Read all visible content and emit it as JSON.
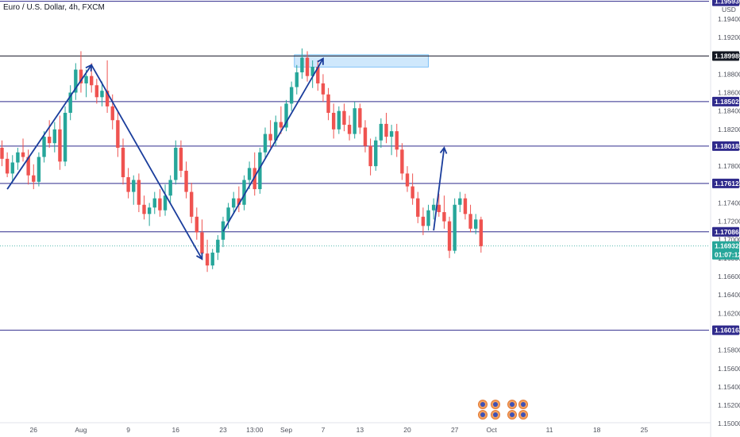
{
  "header": {
    "title": "Euro / U.S. Dollar, 4h, FXCM"
  },
  "colors": {
    "up": "#26a69a",
    "down": "#ef5350",
    "level_line": "#2f2a8c",
    "trend_arrow": "#1a3d9c",
    "current_price": "#26a69a",
    "zone_fill": "#bbdefb",
    "zone_stroke": "#64b5f6"
  },
  "chart_data": {
    "type": "candlestick",
    "symbol": "Euro / U.S. Dollar",
    "timeframe": "4h",
    "source": "FXCM",
    "y_axis": {
      "currency_label": "USD",
      "top_label": "1.19600",
      "ticks": [
        "1.19400",
        "1.19200",
        "1.19000",
        "1.18800",
        "1.18600",
        "1.18400",
        "1.18200",
        "1.18000",
        "1.17800",
        "1.17600",
        "1.17400",
        "1.17200",
        "1.17000",
        "1.16800",
        "1.16600",
        "1.16400",
        "1.16200",
        "1.16000",
        "1.15800",
        "1.15600",
        "1.15400",
        "1.15200",
        "1.15000"
      ],
      "ylim": [
        1.1495,
        1.1965
      ]
    },
    "x_axis": {
      "ticks": [
        {
          "label": "26",
          "idx": 6
        },
        {
          "label": "Aug",
          "idx": 15
        },
        {
          "label": "9",
          "idx": 24
        },
        {
          "label": "16",
          "idx": 33
        },
        {
          "label": "23",
          "idx": 42
        },
        {
          "label": "13:00",
          "idx": 48
        },
        {
          "label": "Sep",
          "idx": 54
        },
        {
          "label": "7",
          "idx": 61
        },
        {
          "label": "13",
          "idx": 68
        },
        {
          "label": "20",
          "idx": 77
        },
        {
          "label": "27",
          "idx": 86
        },
        {
          "label": "Oct",
          "idx": 93
        },
        {
          "label": "11",
          "idx": 104
        },
        {
          "label": "18",
          "idx": 113
        },
        {
          "label": "25",
          "idx": 122
        }
      ]
    },
    "horizontal_levels": [
      {
        "value": 1.19593,
        "label": "1.19593"
      },
      {
        "value": 1.18998,
        "label": "1.18998",
        "emphasis": true
      },
      {
        "value": 1.18502,
        "label": "1.18502"
      },
      {
        "value": 1.18018,
        "label": "1.18018"
      },
      {
        "value": 1.17612,
        "label": "1.17612"
      },
      {
        "value": 1.17086,
        "label": "1.17086"
      },
      {
        "value": 1.16016,
        "label": "1.16016"
      }
    ],
    "current_price": {
      "value": 1.16932,
      "label": "1.16932",
      "countdown": "01:07:12"
    },
    "zone": {
      "idx_start": 56,
      "idx_end": 81,
      "y_top": 1.19012,
      "y_bottom": 1.18878
    },
    "trend_arrows": [
      {
        "from": [
          1,
          1.1755
        ],
        "to": [
          17,
          1.189
        ]
      },
      {
        "from": [
          17,
          1.189
        ],
        "to": [
          38,
          1.1679
        ]
      },
      {
        "from": [
          42,
          1.1709
        ],
        "to": [
          61,
          1.1897
        ]
      },
      {
        "from": [
          82,
          1.171
        ],
        "to": [
          84,
          1.18
        ]
      }
    ],
    "candles": [
      [
        1.18,
        1.1808,
        1.178,
        1.1788
      ],
      [
        1.1788,
        1.1795,
        1.1768,
        1.1772
      ],
      [
        1.1772,
        1.1792,
        1.1762,
        1.1784
      ],
      [
        1.1784,
        1.18,
        1.1776,
        1.1795
      ],
      [
        1.1795,
        1.181,
        1.1785,
        1.179
      ],
      [
        1.179,
        1.1798,
        1.176,
        1.177
      ],
      [
        1.177,
        1.1782,
        1.1755,
        1.1763
      ],
      [
        1.1763,
        1.1795,
        1.1758,
        1.179
      ],
      [
        1.179,
        1.1818,
        1.1784,
        1.1812
      ],
      [
        1.1812,
        1.183,
        1.18,
        1.1805
      ],
      [
        1.1805,
        1.1828,
        1.1795,
        1.182
      ],
      [
        1.182,
        1.1835,
        1.1776,
        1.1785
      ],
      [
        1.1785,
        1.1845,
        1.178,
        1.1838
      ],
      [
        1.1838,
        1.1868,
        1.183,
        1.186
      ],
      [
        1.186,
        1.1892,
        1.1852,
        1.1885
      ],
      [
        1.1885,
        1.1905,
        1.186,
        1.187
      ],
      [
        1.187,
        1.1885,
        1.1855,
        1.1878
      ],
      [
        1.1878,
        1.1892,
        1.186,
        1.1868
      ],
      [
        1.1868,
        1.1875,
        1.1848,
        1.1855
      ],
      [
        1.1855,
        1.1872,
        1.1845,
        1.1862
      ],
      [
        1.1862,
        1.1895,
        1.1838,
        1.1845
      ],
      [
        1.1845,
        1.1858,
        1.182,
        1.183
      ],
      [
        1.183,
        1.184,
        1.179,
        1.18
      ],
      [
        1.18,
        1.181,
        1.176,
        1.1768
      ],
      [
        1.1768,
        1.1778,
        1.1745,
        1.1752
      ],
      [
        1.1752,
        1.177,
        1.1738,
        1.1765
      ],
      [
        1.1765,
        1.1772,
        1.173,
        1.1738
      ],
      [
        1.1738,
        1.1748,
        1.1722,
        1.1728
      ],
      [
        1.1728,
        1.174,
        1.1715,
        1.1735
      ],
      [
        1.1735,
        1.1752,
        1.1728,
        1.1745
      ],
      [
        1.1745,
        1.1755,
        1.1725,
        1.1732
      ],
      [
        1.1732,
        1.176,
        1.1726,
        1.1748
      ],
      [
        1.1748,
        1.177,
        1.174,
        1.1765
      ],
      [
        1.1765,
        1.1808,
        1.176,
        1.18
      ],
      [
        1.18,
        1.1808,
        1.1768,
        1.1775
      ],
      [
        1.1775,
        1.1785,
        1.1745,
        1.1752
      ],
      [
        1.1752,
        1.1762,
        1.1718,
        1.1725
      ],
      [
        1.1725,
        1.1735,
        1.17,
        1.1708
      ],
      [
        1.1708,
        1.1722,
        1.1678,
        1.1685
      ],
      [
        1.1685,
        1.17,
        1.1665,
        1.1672
      ],
      [
        1.1672,
        1.169,
        1.1668,
        1.1686
      ],
      [
        1.1686,
        1.1705,
        1.1678,
        1.17
      ],
      [
        1.17,
        1.1725,
        1.1692,
        1.172
      ],
      [
        1.172,
        1.174,
        1.1712,
        1.1735
      ],
      [
        1.1735,
        1.1752,
        1.1728,
        1.1745
      ],
      [
        1.1745,
        1.1758,
        1.173,
        1.1738
      ],
      [
        1.1738,
        1.177,
        1.1732,
        1.1765
      ],
      [
        1.1765,
        1.1785,
        1.1755,
        1.1778
      ],
      [
        1.1778,
        1.1795,
        1.1748,
        1.1755
      ],
      [
        1.1755,
        1.18,
        1.175,
        1.1795
      ],
      [
        1.1795,
        1.1822,
        1.1788,
        1.1815
      ],
      [
        1.1815,
        1.183,
        1.18,
        1.1808
      ],
      [
        1.1808,
        1.1835,
        1.1802,
        1.1828
      ],
      [
        1.1828,
        1.1845,
        1.1815,
        1.1822
      ],
      [
        1.1822,
        1.1852,
        1.1818,
        1.1848
      ],
      [
        1.1848,
        1.1872,
        1.184,
        1.1866
      ],
      [
        1.1866,
        1.189,
        1.1858,
        1.1882
      ],
      [
        1.1882,
        1.1908,
        1.1875,
        1.1898
      ],
      [
        1.1898,
        1.1905,
        1.1872,
        1.1878
      ],
      [
        1.1878,
        1.1895,
        1.1865,
        1.1888
      ],
      [
        1.1888,
        1.1895,
        1.1862,
        1.187
      ],
      [
        1.187,
        1.188,
        1.185,
        1.1858
      ],
      [
        1.1858,
        1.1865,
        1.183,
        1.1838
      ],
      [
        1.1838,
        1.1848,
        1.181,
        1.182
      ],
      [
        1.182,
        1.1845,
        1.1815,
        1.184
      ],
      [
        1.184,
        1.1848,
        1.1818,
        1.1825
      ],
      [
        1.1825,
        1.1835,
        1.1808,
        1.1815
      ],
      [
        1.1815,
        1.185,
        1.181,
        1.1843
      ],
      [
        1.1843,
        1.1848,
        1.1815,
        1.1822
      ],
      [
        1.1822,
        1.183,
        1.1795,
        1.1802
      ],
      [
        1.1802,
        1.181,
        1.177,
        1.178
      ],
      [
        1.178,
        1.1812,
        1.1775,
        1.1808
      ],
      [
        1.1808,
        1.1832,
        1.18,
        1.1826
      ],
      [
        1.1826,
        1.1838,
        1.1805,
        1.1812
      ],
      [
        1.1812,
        1.1825,
        1.1792,
        1.1818
      ],
      [
        1.1818,
        1.1826,
        1.179,
        1.1798
      ],
      [
        1.1798,
        1.1805,
        1.1765,
        1.1772
      ],
      [
        1.1772,
        1.178,
        1.1752,
        1.1758
      ],
      [
        1.1758,
        1.1772,
        1.1738,
        1.1745
      ],
      [
        1.1745,
        1.1752,
        1.1718,
        1.1725
      ],
      [
        1.1725,
        1.1735,
        1.1705,
        1.1715
      ],
      [
        1.1715,
        1.1738,
        1.171,
        1.1732
      ],
      [
        1.1732,
        1.1745,
        1.1722,
        1.1738
      ],
      [
        1.1738,
        1.175,
        1.1725,
        1.173
      ],
      [
        1.173,
        1.1748,
        1.1712,
        1.172
      ],
      [
        1.172,
        1.1725,
        1.168,
        1.1688
      ],
      [
        1.1688,
        1.1745,
        1.1685,
        1.1738
      ],
      [
        1.1738,
        1.1752,
        1.173,
        1.1745
      ],
      [
        1.1745,
        1.175,
        1.1722,
        1.1728
      ],
      [
        1.1728,
        1.1738,
        1.1708,
        1.1712
      ],
      [
        1.1712,
        1.1728,
        1.1706,
        1.1722
      ],
      [
        1.1722,
        1.1725,
        1.1686,
        1.1693
      ]
    ]
  }
}
